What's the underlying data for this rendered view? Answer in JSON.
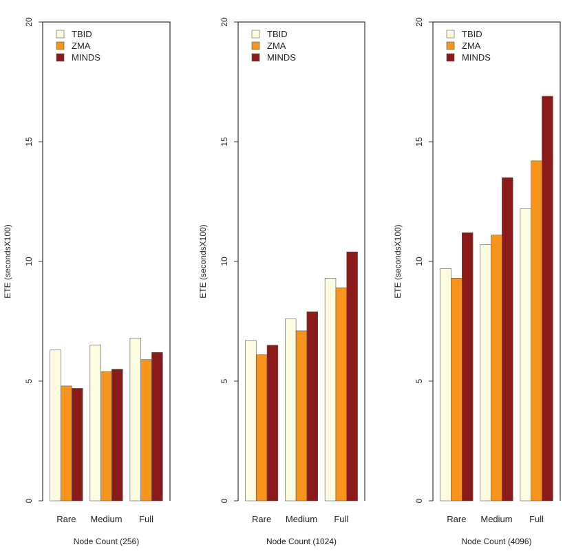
{
  "chart_data": [
    {
      "type": "bar",
      "title": "",
      "xlabel": "Node Count (256)",
      "ylabel": "ETE (secondsX100)",
      "ylim": [
        0,
        20
      ],
      "yticks": [
        "0",
        "5",
        "10",
        "15",
        "20"
      ],
      "categories": [
        "Rare",
        "Medium",
        "Full"
      ],
      "series": [
        {
          "name": "TBID",
          "values": [
            6.3,
            6.5,
            6.8
          ]
        },
        {
          "name": "ZMA",
          "values": [
            4.8,
            5.4,
            5.9
          ]
        },
        {
          "name": "MINDS",
          "values": [
            4.7,
            5.5,
            6.2
          ]
        }
      ],
      "legend_position": "top-left",
      "grid": false
    },
    {
      "type": "bar",
      "title": "",
      "xlabel": "Node Count (1024)",
      "ylabel": "ETE (secondsX100)",
      "ylim": [
        0,
        20
      ],
      "yticks": [
        "0",
        "5",
        "10",
        "15",
        "20"
      ],
      "categories": [
        "Rare",
        "Medium",
        "Full"
      ],
      "series": [
        {
          "name": "TBID",
          "values": [
            6.7,
            7.6,
            9.3
          ]
        },
        {
          "name": "ZMA",
          "values": [
            6.1,
            7.1,
            8.9
          ]
        },
        {
          "name": "MINDS",
          "values": [
            6.5,
            7.9,
            10.4
          ]
        }
      ],
      "legend_position": "top-left",
      "grid": false
    },
    {
      "type": "bar",
      "title": "",
      "xlabel": "Node Count (4096)",
      "ylabel": "ETE (secondsX100)",
      "ylim": [
        0,
        20
      ],
      "yticks": [
        "0",
        "5",
        "10",
        "15",
        "20"
      ],
      "categories": [
        "Rare",
        "Medium",
        "Full"
      ],
      "series": [
        {
          "name": "TBID",
          "values": [
            9.7,
            10.7,
            12.2
          ]
        },
        {
          "name": "ZMA",
          "values": [
            9.3,
            11.1,
            14.2
          ]
        },
        {
          "name": "MINDS",
          "values": [
            11.2,
            13.5,
            16.9
          ]
        }
      ],
      "legend_position": "top-left",
      "grid": false
    }
  ],
  "colors": {
    "TBID": "#fdfbe0",
    "ZMA": "#f7941d",
    "MINDS": "#8b1a1a",
    "bar_outline": "#555555",
    "frame": "#333333"
  }
}
